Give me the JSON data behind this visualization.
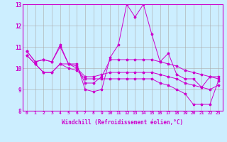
{
  "xlabel": "Windchill (Refroidissement éolien,°C)",
  "background_color": "#cceeff",
  "plot_bg_color": "#cceeff",
  "line_color": "#cc00cc",
  "x_ticks": [
    0,
    1,
    2,
    3,
    4,
    5,
    6,
    7,
    8,
    9,
    10,
    11,
    12,
    13,
    14,
    15,
    16,
    17,
    18,
    19,
    20,
    21,
    22,
    23
  ],
  "ylim": [
    8,
    13
  ],
  "y_ticks": [
    8,
    9,
    10,
    11,
    12,
    13
  ],
  "lines": [
    [
      10.8,
      10.3,
      10.4,
      10.3,
      11.1,
      10.2,
      10.2,
      9.0,
      8.9,
      9.0,
      10.5,
      11.1,
      13.0,
      12.4,
      13.0,
      11.6,
      10.3,
      10.7,
      9.7,
      9.5,
      9.5,
      9.1,
      9.6,
      9.5
    ],
    [
      10.8,
      10.3,
      10.4,
      10.3,
      11.0,
      10.2,
      10.1,
      9.3,
      9.3,
      9.6,
      10.4,
      10.4,
      10.4,
      10.4,
      10.4,
      10.4,
      10.3,
      10.2,
      10.1,
      9.9,
      9.8,
      9.7,
      9.6,
      9.6
    ],
    [
      10.6,
      10.2,
      9.8,
      9.8,
      10.2,
      10.2,
      10.0,
      9.6,
      9.6,
      9.7,
      9.8,
      9.8,
      9.8,
      9.8,
      9.8,
      9.8,
      9.7,
      9.6,
      9.5,
      9.3,
      9.2,
      9.1,
      9.0,
      9.2
    ],
    [
      10.6,
      10.2,
      9.8,
      9.8,
      10.2,
      10.0,
      9.9,
      9.5,
      9.5,
      9.5,
      9.5,
      9.5,
      9.5,
      9.5,
      9.5,
      9.5,
      9.3,
      9.2,
      9.0,
      8.8,
      8.3,
      8.3,
      8.3,
      9.4
    ]
  ]
}
